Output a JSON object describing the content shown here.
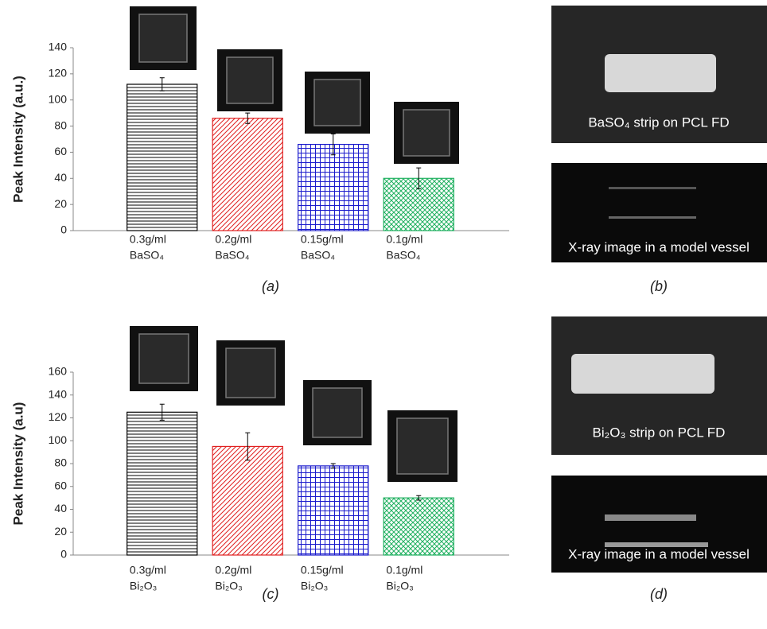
{
  "chart_data": [
    {
      "type": "bar",
      "panel_label": "(a)",
      "y_label": "Peak Intensity (a.u.)",
      "categories": [
        "0.3g/ml",
        "0.2g/ml",
        "0.15g/ml",
        "0.1g/ml"
      ],
      "category_sublabels": [
        "BaSO₄",
        "BaSO₄",
        "BaSO₄",
        "BaSO₄"
      ],
      "values": [
        112,
        86,
        66,
        40
      ],
      "errors": [
        5,
        4,
        8,
        8
      ],
      "colors": [
        "#000000",
        "#e02020",
        "#1a1acc",
        "#20b060"
      ],
      "ylim": [
        0,
        140
      ],
      "yticks": [
        0,
        20,
        40,
        60,
        80,
        100,
        120,
        140
      ]
    },
    {
      "type": "bar",
      "panel_label": "(c)",
      "y_label": "Peak Intensity (a.u)",
      "categories": [
        "0.3g/ml",
        "0.2g/ml",
        "0.15g/ml",
        "0.1g/ml"
      ],
      "category_sublabels": [
        "Bi₂O₃",
        "Bi₂O₃",
        "Bi₂O₃",
        "Bi₂O₃"
      ],
      "values": [
        125,
        95,
        78,
        50
      ],
      "errors": [
        7,
        12,
        2,
        2
      ],
      "colors": [
        "#000000",
        "#e02020",
        "#1a1acc",
        "#20b060"
      ],
      "ylim": [
        0,
        160
      ],
      "yticks": [
        0,
        20,
        40,
        60,
        80,
        100,
        120,
        140,
        160
      ]
    }
  ],
  "panels": [
    {
      "label": "(b)",
      "captions": [
        "BaSO₄ strip on PCL FD",
        "X-ray image in a model vessel"
      ]
    },
    {
      "label": "(d)",
      "captions": [
        "Bi₂O₃ strip on PCL FD",
        "X-ray image in a model vessel"
      ]
    }
  ]
}
